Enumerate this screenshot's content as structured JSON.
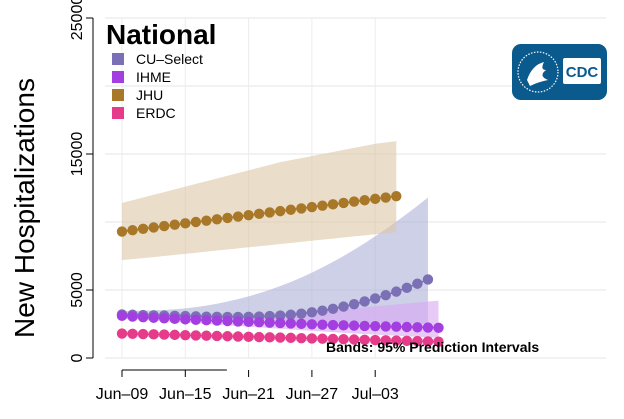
{
  "chart_data": {
    "type": "line",
    "title": "National",
    "xlabel": "",
    "ylabel": "New Hospitalizations",
    "ylim": [
      0,
      25000
    ],
    "yticks": [
      0,
      5000,
      15000,
      25000
    ],
    "xticks": [
      "Jun–09",
      "Jun–15",
      "Jun–21",
      "Jun–27",
      "Jul–03"
    ],
    "grid": true,
    "legend_position": "top-left",
    "annotation": "Bands: 95% Prediction Intervals",
    "logo": "CDC",
    "series": [
      {
        "name": "CU–Select",
        "color": "#7b6fb5",
        "band_color": "#aeb0d9",
        "values": [
          3200,
          3180,
          3160,
          3140,
          3120,
          3100,
          3080,
          3060,
          3040,
          3030,
          3020,
          3020,
          3030,
          3050,
          3080,
          3120,
          3180,
          3260,
          3360,
          3480,
          3620,
          3780,
          3960,
          4160,
          4380,
          4620,
          4880,
          5160,
          5460,
          5780
        ],
        "lower": [
          2900,
          2880,
          2860,
          2840,
          2820,
          2800,
          2780,
          2760,
          2740,
          2720,
          2700,
          2690,
          2680,
          2670,
          2660,
          2650,
          2640,
          2630,
          2620,
          2610,
          2600,
          2590,
          2580,
          2570,
          2560,
          2550,
          2540,
          2530,
          2520,
          2510
        ],
        "upper": [
          3450,
          3460,
          3480,
          3500,
          3530,
          3580,
          3650,
          3740,
          3850,
          3990,
          4150,
          4330,
          4530,
          4760,
          5010,
          5290,
          5590,
          5920,
          6280,
          6660,
          7070,
          7500,
          7960,
          8440,
          8950,
          9480,
          10030,
          10600,
          11190,
          11800
        ]
      },
      {
        "name": "IHME",
        "color": "#a33fe0",
        "band_color": "#d9a6f2",
        "values": [
          3100,
          3050,
          3000,
          2960,
          2920,
          2880,
          2840,
          2810,
          2780,
          2750,
          2720,
          2690,
          2660,
          2630,
          2600,
          2570,
          2540,
          2510,
          2480,
          2450,
          2420,
          2400,
          2380,
          2360,
          2340,
          2320,
          2300,
          2280,
          2260,
          2240,
          2220
        ],
        "lower": [
          2900,
          2850,
          2800,
          2750,
          2700,
          2650,
          2600,
          2550,
          2500,
          2450,
          2400,
          2350,
          2300,
          2250,
          2200,
          2150,
          2100,
          2050,
          2000,
          1950,
          1900,
          1850,
          1800,
          1760,
          1720,
          1680,
          1640,
          1600,
          1560,
          1520,
          1480
        ],
        "upper": [
          3300,
          3300,
          3290,
          3280,
          3270,
          3260,
          3250,
          3240,
          3240,
          3240,
          3250,
          3260,
          3270,
          3290,
          3310,
          3340,
          3370,
          3410,
          3450,
          3500,
          3550,
          3610,
          3670,
          3730,
          3800,
          3870,
          3940,
          4010,
          4080,
          4150,
          4220
        ]
      },
      {
        "name": "JHU",
        "color": "#a87828",
        "band_color": "#dcc6a7",
        "values": [
          9300,
          9400,
          9500,
          9600,
          9700,
          9800,
          9900,
          10000,
          10100,
          10200,
          10300,
          10400,
          10500,
          10600,
          10700,
          10800,
          10900,
          11000,
          11100,
          11200,
          11300,
          11400,
          11500,
          11600,
          11700,
          11800,
          11900
        ],
        "lower": [
          7200,
          7270,
          7340,
          7420,
          7500,
          7580,
          7660,
          7740,
          7820,
          7900,
          7980,
          8060,
          8140,
          8220,
          8300,
          8380,
          8460,
          8540,
          8620,
          8700,
          8780,
          8860,
          8940,
          9020,
          9100,
          9180,
          9250
        ],
        "upper": [
          11400,
          11600,
          11800,
          12000,
          12200,
          12400,
          12600,
          12800,
          13000,
          13200,
          13400,
          13600,
          13800,
          14000,
          14200,
          14400,
          14550,
          14700,
          14850,
          15000,
          15150,
          15300,
          15450,
          15600,
          15750,
          15850,
          15950
        ]
      },
      {
        "name": "ERDC",
        "color": "#e63b8a",
        "band_color": "#f3a6c9",
        "values": [
          1800,
          1780,
          1760,
          1740,
          1720,
          1700,
          1680,
          1660,
          1640,
          1620,
          1600,
          1580,
          1560,
          1540,
          1520,
          1500,
          1480,
          1460,
          1440,
          1420,
          1400,
          1380,
          1360,
          1340,
          1320,
          1300,
          1280,
          1260,
          1240,
          1220,
          1200
        ],
        "lower": [
          1600,
          1580,
          1560,
          1540,
          1520,
          1500,
          1480,
          1460,
          1440,
          1420,
          1400,
          1380,
          1360,
          1340,
          1320,
          1300,
          1280,
          1260,
          1240,
          1220,
          1200,
          1180,
          1160,
          1140,
          1120,
          1100,
          1080,
          1060,
          1040,
          1020,
          1000
        ],
        "upper": [
          2000,
          1980,
          1960,
          1940,
          1920,
          1900,
          1880,
          1860,
          1840,
          1820,
          1800,
          1780,
          1760,
          1740,
          1720,
          1700,
          1680,
          1660,
          1640,
          1620,
          1600,
          1580,
          1560,
          1540,
          1520,
          1500,
          1480,
          1460,
          1440,
          1420,
          1400
        ]
      }
    ]
  }
}
